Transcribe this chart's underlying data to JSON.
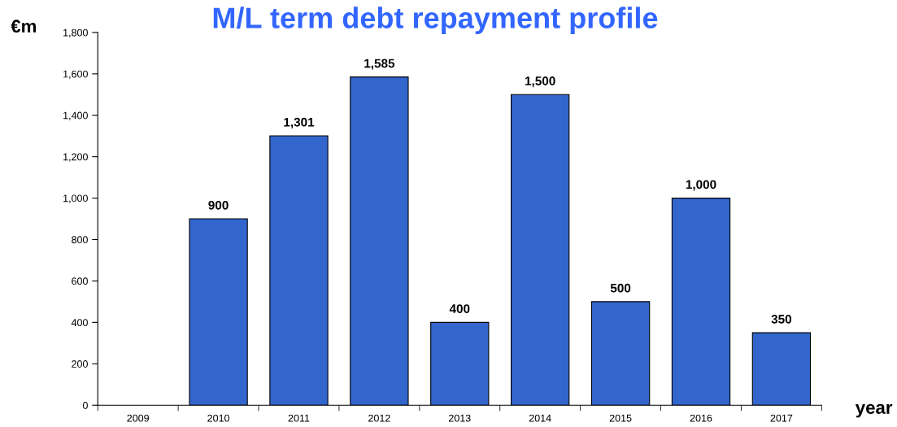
{
  "chart_data": {
    "type": "bar",
    "title": "M/L term debt repayment profile",
    "ylabel": "€m",
    "xlabel": "year",
    "categories": [
      "2009",
      "2010",
      "2011",
      "2012",
      "2013",
      "2014",
      "2015",
      "2016",
      "2017"
    ],
    "values": [
      null,
      900,
      1301,
      1585,
      400,
      1500,
      500,
      1000,
      350
    ],
    "value_labels": [
      null,
      "900",
      "1,301",
      "1,585",
      "400",
      "1,500",
      "500",
      "1,000",
      "350"
    ],
    "color": "#3366cc",
    "ylim": [
      0,
      1800
    ],
    "yticks": [
      0,
      200,
      400,
      600,
      800,
      {
        "value": 1000,
        "label": "1,000"
      },
      {
        "value": 1200,
        "label": "1,200"
      },
      {
        "value": 1400,
        "label": "1,400"
      },
      {
        "value": 1600,
        "label": "1,600"
      },
      {
        "value": 1800,
        "label": "1,800"
      }
    ],
    "grid": false,
    "legend": false
  }
}
